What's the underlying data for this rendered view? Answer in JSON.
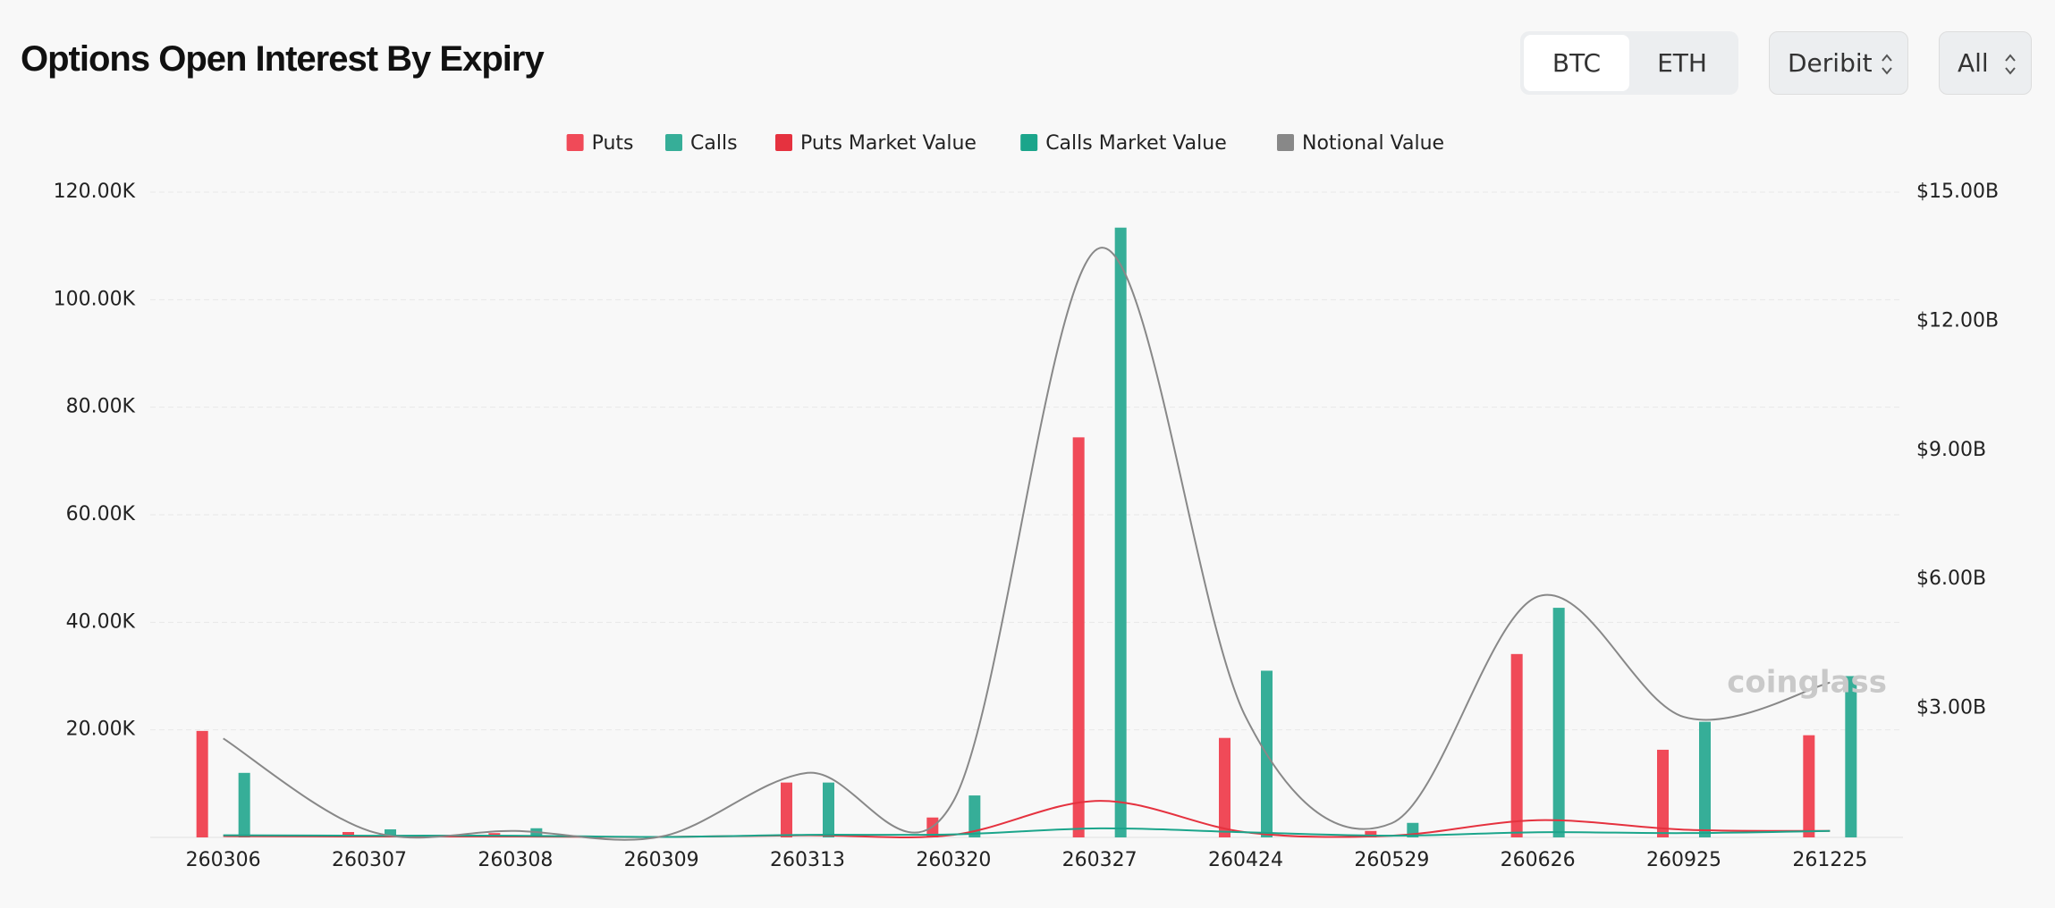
{
  "header": {
    "title": "Options Open Interest By Expiry",
    "coins": [
      "BTC",
      "ETH"
    ],
    "exchange": "Deribit",
    "period": "All"
  },
  "chart_data": {
    "type": "bar",
    "watermark": "coinglass",
    "categories": [
      "260306",
      "260307",
      "260308",
      "260309",
      "260313",
      "260320",
      "260327",
      "260424",
      "260529",
      "260626",
      "260925",
      "261225"
    ],
    "ylim": [
      0,
      120000
    ],
    "yticks": [
      {
        "value": 20000,
        "label": "20.00K"
      },
      {
        "value": 40000,
        "label": "40.00K"
      },
      {
        "value": 60000,
        "label": "60.00K"
      },
      {
        "value": 80000,
        "label": "80.00K"
      },
      {
        "value": 100000,
        "label": "100.00K"
      },
      {
        "value": 120000,
        "label": "120.00K"
      }
    ],
    "y2lim": [
      0,
      15000000000
    ],
    "y2ticks": [
      {
        "value": 3000000000,
        "label": "$3.00B"
      },
      {
        "value": 6000000000,
        "label": "$6.00B"
      },
      {
        "value": 9000000000,
        "label": "$9.00B"
      },
      {
        "value": 12000000000,
        "label": "$12.00B"
      },
      {
        "value": 15000000000,
        "label": "$15.00B"
      }
    ],
    "grid": true,
    "series": [
      {
        "name": "Puts",
        "type": "bar",
        "color": "#f04a58",
        "values": [
          19800,
          1000,
          800,
          0,
          10200,
          3700,
          74400,
          18500,
          1200,
          34100,
          16300,
          19000
        ]
      },
      {
        "name": "Calls",
        "type": "bar",
        "color": "#36ae98",
        "values": [
          12000,
          1500,
          1700,
          0,
          10200,
          7800,
          113400,
          31000,
          2700,
          42700,
          21500,
          30000
        ]
      },
      {
        "name": "Puts Market Value",
        "type": "line",
        "axis": "y2",
        "color": "#e5323f",
        "values": [
          30000000,
          20000000,
          20000000,
          10000000,
          50000000,
          60000000,
          850000000,
          120000000,
          40000000,
          400000000,
          180000000,
          150000000
        ]
      },
      {
        "name": "Calls Market Value",
        "type": "line",
        "axis": "y2",
        "color": "#1ba58b",
        "values": [
          50000000,
          40000000,
          40000000,
          10000000,
          60000000,
          70000000,
          210000000,
          120000000,
          40000000,
          120000000,
          100000000,
          150000000
        ]
      },
      {
        "name": "Notional Value",
        "type": "line",
        "axis": "y2",
        "color": "#888888",
        "values": [
          2300000000,
          150000000,
          150000000,
          20000000,
          1500000000,
          850000000,
          13700000000,
          2800000000,
          330000000,
          5600000000,
          2800000000,
          3600000000
        ]
      }
    ]
  }
}
